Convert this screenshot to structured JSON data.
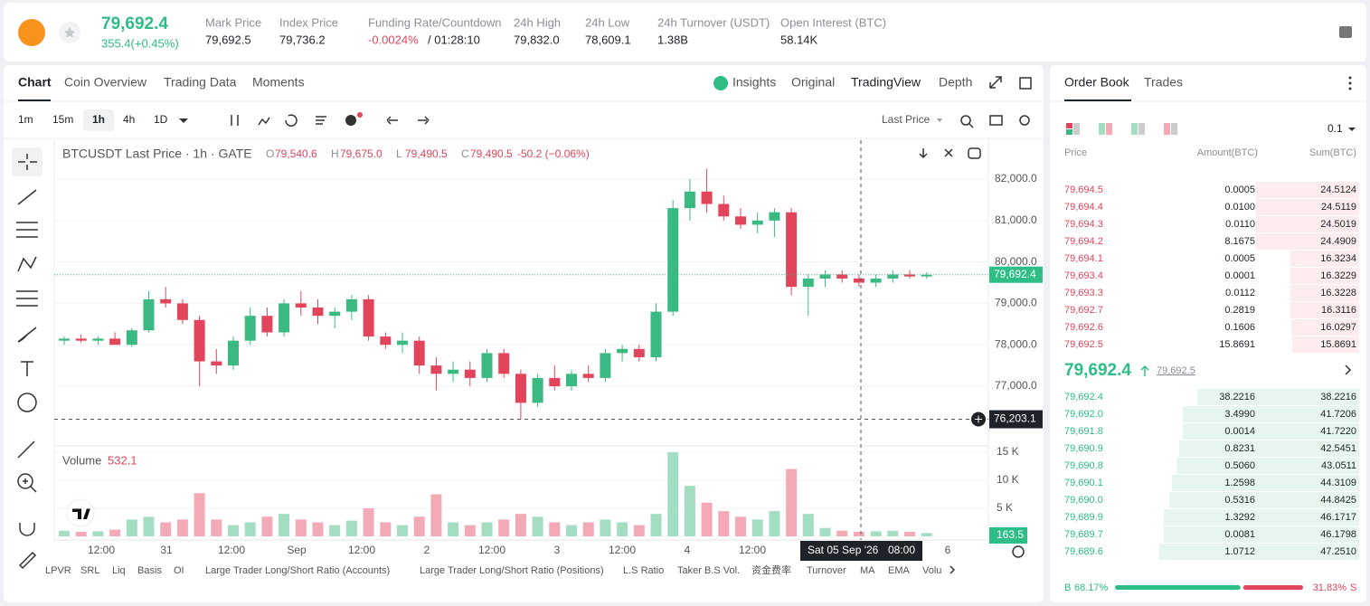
{
  "header": {
    "price": "79,692.4",
    "change": "355.4(+0.45%)",
    "stats": [
      {
        "label": "Mark Price",
        "value": "79,692.5"
      },
      {
        "label": "Index Price",
        "value": "79,736.2"
      },
      {
        "label": "Funding Rate/Countdown",
        "value": "-0.0024%",
        "extra": "/ 01:28:10"
      },
      {
        "label": "24h High",
        "value": "79,832.0"
      },
      {
        "label": "24h Low",
        "value": "78,609.1"
      },
      {
        "label": "24h Turnover (USDT)",
        "value": "1.38B"
      },
      {
        "label": "Open Interest (BTC)",
        "value": "58.14K"
      }
    ]
  },
  "tabs": [
    "Chart",
    "Coin Overview",
    "Trading Data",
    "Moments"
  ],
  "views": [
    "Insights",
    "Original",
    "TradingView",
    "Depth"
  ],
  "intervals": [
    "1m",
    "15m",
    "1h",
    "4h",
    "1D"
  ],
  "price_source": "Last Price",
  "legend": {
    "symbol": "BTCUSDT Last Price · 1h · GATE",
    "items": [
      {
        "key": "O",
        "value": "79,540.6"
      },
      {
        "key": "H",
        "value": "79,675.0"
      },
      {
        "key": "L",
        "value": "79,490.5"
      },
      {
        "key": "C",
        "value": "79,490.5"
      }
    ],
    "change": "-50.2 (−0.06%)"
  },
  "chart_data": {
    "type": "candlestick",
    "candles": [
      [
        78100,
        78200,
        78000,
        78150
      ],
      [
        78150,
        78250,
        78050,
        78100
      ],
      [
        78100,
        78200,
        78000,
        78150
      ],
      [
        78150,
        78300,
        78050,
        78000
      ],
      [
        78000,
        78400,
        77950,
        78350
      ],
      [
        78350,
        79300,
        78300,
        79100
      ],
      [
        79100,
        79400,
        78900,
        79000
      ],
      [
        79000,
        79100,
        78500,
        78600
      ],
      [
        78600,
        78700,
        77000,
        77600
      ],
      [
        77600,
        77900,
        77300,
        77500
      ],
      [
        77500,
        78200,
        77400,
        78100
      ],
      [
        78100,
        78900,
        78000,
        78700
      ],
      [
        78700,
        78900,
        78200,
        78300
      ],
      [
        78300,
        79100,
        78200,
        79000
      ],
      [
        79000,
        79300,
        78700,
        78900
      ],
      [
        78900,
        79100,
        78500,
        78700
      ],
      [
        78700,
        78900,
        78400,
        78800
      ],
      [
        78800,
        79200,
        78600,
        79100
      ],
      [
        79100,
        79200,
        78100,
        78200
      ],
      [
        78200,
        78300,
        77900,
        78000
      ],
      [
        78000,
        78300,
        77800,
        78100
      ],
      [
        78100,
        78200,
        77300,
        77500
      ],
      [
        77500,
        77700,
        76900,
        77300
      ],
      [
        77300,
        77600,
        77100,
        77400
      ],
      [
        77400,
        77600,
        77000,
        77200
      ],
      [
        77200,
        77900,
        77100,
        77800
      ],
      [
        77800,
        77900,
        77200,
        77300
      ],
      [
        77300,
        77400,
        76200,
        76600
      ],
      [
        76600,
        77300,
        76500,
        77200
      ],
      [
        77200,
        77500,
        76900,
        77000
      ],
      [
        77000,
        77400,
        76900,
        77300
      ],
      [
        77300,
        77500,
        77100,
        77200
      ],
      [
        77200,
        77900,
        77100,
        77800
      ],
      [
        77800,
        78000,
        77600,
        77900
      ],
      [
        77900,
        78000,
        77600,
        77700
      ],
      [
        77700,
        79000,
        77600,
        78800
      ],
      [
        78800,
        81500,
        78700,
        81300
      ],
      [
        81300,
        82000,
        81000,
        81700
      ],
      [
        81700,
        82250,
        81200,
        81400
      ],
      [
        81400,
        81600,
        81000,
        81100
      ],
      [
        81100,
        81300,
        80800,
        80900
      ],
      [
        80900,
        81200,
        80700,
        81000
      ],
      [
        81000,
        81300,
        80600,
        81200
      ],
      [
        81200,
        81300,
        79200,
        79400
      ],
      [
        79400,
        79700,
        78700,
        79600
      ],
      [
        79600,
        79800,
        79400,
        79700
      ],
      [
        79700,
        79800,
        79500,
        79600
      ],
      [
        79600,
        79700,
        79400,
        79500
      ],
      [
        79500,
        79700,
        79400,
        79600
      ],
      [
        79600,
        79800,
        79500,
        79700
      ],
      [
        79700,
        79800,
        79600,
        79650
      ],
      [
        79650,
        79750,
        79600,
        79692.4
      ]
    ],
    "volumes": [
      1000,
      800,
      900,
      1200,
      3000,
      3500,
      2500,
      3000,
      7700,
      3000,
      2000,
      2500,
      3500,
      4000,
      3000,
      2500,
      2000,
      2800,
      5000,
      2500,
      2000,
      3500,
      7500,
      2500,
      2000,
      2500,
      3000,
      4000,
      3500,
      2500,
      2000,
      2500,
      3000,
      2500,
      2000,
      4000,
      15000,
      9000,
      6000,
      4500,
      3500,
      3000,
      4500,
      12000,
      4000,
      1500,
      1000,
      800,
      900,
      1000,
      800,
      600
    ],
    "up_color": "#3bb982",
    "down_color": "#e2455b",
    "up_volume_color": "#a3dec3",
    "down_volume_color": "#f4aab6",
    "ylim": [
      75625,
      82940
    ],
    "yticks": [
      {
        "value": 77000,
        "label": "77,000.0"
      },
      {
        "value": 78000,
        "label": "78,000.0"
      },
      {
        "value": 79000,
        "label": "79,000.0"
      },
      {
        "value": 80000,
        "label": "80,000.0"
      },
      {
        "value": 81000,
        "label": "81,000.0"
      },
      {
        "value": 82000,
        "label": "82,000.0"
      }
    ],
    "volume_title": "Volume",
    "volume_last": "532.1",
    "vlim": [
      0,
      15800
    ],
    "vticks": [
      {
        "value": 5000,
        "label": "5 K"
      },
      {
        "value": 10000,
        "label": "10 K"
      },
      {
        "value": 15000,
        "label": "15 K"
      }
    ],
    "volume_current": {
      "value": 163.5,
      "label": "163.5"
    },
    "last_price": {
      "value": 79692.4,
      "label": "79,692.4"
    },
    "crosshair": {
      "value": 76203.1,
      "label": "76,203.1",
      "date": "Sat 05 Sep '26",
      "time": "08:00"
    },
    "xlabels": [
      "12:00",
      "31",
      "12:00",
      "Sep",
      "12:00",
      "2",
      "12:00",
      "3",
      "12:00",
      "4",
      "12:00",
      null,
      null,
      "6"
    ]
  },
  "indicators": [
    "LPVR",
    "SRL",
    "Liq",
    "Basis",
    "OI",
    "Large Trader Long/Short Ratio (Accounts)",
    "Large Trader Long/Short Ratio (Positions)",
    "L.S Ratio",
    "Taker B.S Vol.",
    "资金费率",
    "Turnover",
    "MA",
    "EMA",
    "Volu"
  ],
  "order_book": {
    "tabs": [
      "Order Book",
      "Trades"
    ],
    "precision": "0.1",
    "columns": [
      "Price",
      "Amount(BTC)",
      "Sum(BTC)"
    ],
    "asks": [
      [
        "79,694.5",
        "0.0005",
        "24.5124"
      ],
      [
        "79,694.4",
        "0.0100",
        "24.5119"
      ],
      [
        "79,694.3",
        "0.0110",
        "24.5019"
      ],
      [
        "79,694.2",
        "8.1675",
        "24.4909"
      ],
      [
        "79,694.1",
        "0.0005",
        "16.3234"
      ],
      [
        "79,693.4",
        "0.0001",
        "16.3229"
      ],
      [
        "79,693.3",
        "0.0112",
        "16.3228"
      ],
      [
        "79,692.7",
        "0.2819",
        "16.3116"
      ],
      [
        "79,692.6",
        "0.1606",
        "16.0297"
      ],
      [
        "79,692.5",
        "15.8691",
        "15.8691"
      ]
    ],
    "mid": "79,692.4",
    "mark": "79,692.5",
    "bids": [
      [
        "79,692.4",
        "38.2216",
        "38.2216"
      ],
      [
        "79,692.0",
        "3.4990",
        "41.7206"
      ],
      [
        "79,691.8",
        "0.0014",
        "41.7220"
      ],
      [
        "79,690.9",
        "0.8231",
        "42.5451"
      ],
      [
        "79,690.8",
        "0.5060",
        "43.0511"
      ],
      [
        "79,690.1",
        "1.2598",
        "44.3109"
      ],
      [
        "79,690.0",
        "0.5316",
        "44.8425"
      ],
      [
        "79,689.9",
        "1.3292",
        "46.1717"
      ],
      [
        "79,689.7",
        "0.0081",
        "46.1798"
      ],
      [
        "79,689.6",
        "1.0712",
        "47.2510"
      ]
    ],
    "buy": {
      "key": "B",
      "value": 68.17,
      "label": "68.17%"
    },
    "sell": {
      "key": "S",
      "value": 31.83,
      "label": "31.83%"
    }
  }
}
